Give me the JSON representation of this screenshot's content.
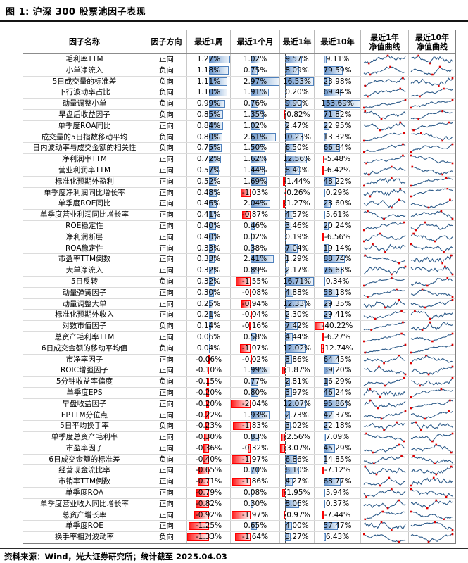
{
  "title": "图 1: 沪深 300 股票池因子表现",
  "footer": "资料来源：Wind，光大证券研究所；统计截至 2025.04.03",
  "colors": {
    "positive_bar_border": "#4f81bd",
    "positive_bar_fill": "#6b96cc",
    "negative_bar_border": "#ff0000",
    "negative_bar_fill": "#ff1f1f",
    "sparkline_line": "#2e5c8a",
    "sparkline_marker": "#dd0000",
    "axis_dash": "#4a4a4a"
  },
  "table": {
    "headers": {
      "name": "因子名称",
      "direction": "因子方向",
      "week": "最近1周",
      "month": "最近1个月",
      "year": "最近1年",
      "tenyear": "最近10年",
      "curve1y": {
        "line1": "最近1年",
        "line2": "净值曲线"
      },
      "curve10y": {
        "line1": "最近10年",
        "line2": "净值曲线"
      }
    },
    "rows": [
      {
        "name": "毛利率TTM",
        "direction": "正向",
        "week": 1.27,
        "month": 1.02,
        "year": 9.57,
        "tenyear": 9.11
      },
      {
        "name": "小单净流入",
        "direction": "负向",
        "week": 1.18,
        "month": 0.75,
        "year": 8.09,
        "tenyear": 79.59
      },
      {
        "name": "5日成交量的标准差",
        "direction": "负向",
        "week": 1.11,
        "month": 2.97,
        "year": 16.53,
        "tenyear": 23.98
      },
      {
        "name": "下行波动率占比",
        "direction": "负向",
        "week": 1.1,
        "month": 1.91,
        "year": 0.2,
        "tenyear": 69.44
      },
      {
        "name": "动量调整小单",
        "direction": "负向",
        "week": 0.99,
        "month": 0.76,
        "year": 9.9,
        "tenyear": 153.69
      },
      {
        "name": "早盘后收益因子",
        "direction": "负向",
        "week": 0.85,
        "month": 1.35,
        "year": -0.82,
        "tenyear": 71.82
      },
      {
        "name": "单季度ROA同比",
        "direction": "正向",
        "week": 0.84,
        "month": 1.02,
        "year": 2.47,
        "tenyear": 22.95
      },
      {
        "name": "成交量的5日指数移动平均",
        "direction": "负向",
        "week": 0.8,
        "month": 2.61,
        "year": 10.23,
        "tenyear": 13.32
      },
      {
        "name": "日内波动率与成交金额的相关性",
        "direction": "负向",
        "week": 0.75,
        "month": 1.5,
        "year": 6.5,
        "tenyear": 66.64
      },
      {
        "name": "净利润率TTM",
        "direction": "正向",
        "week": 0.72,
        "month": 1.62,
        "year": 12.56,
        "tenyear": -5.48
      },
      {
        "name": "营业利润率TTM",
        "direction": "正向",
        "week": 0.57,
        "month": 1.44,
        "year": 8.4,
        "tenyear": -6.42
      },
      {
        "name": "标准化预期外盈利",
        "direction": "正向",
        "week": 0.52,
        "month": 1.69,
        "year": -1.44,
        "tenyear": 48.22
      },
      {
        "name": "单季度净利润同比增长率",
        "direction": "正向",
        "week": 0.48,
        "month": -1.03,
        "year": -0.26,
        "tenyear": 0.29
      },
      {
        "name": "单季度ROE同比",
        "direction": "正向",
        "week": 0.46,
        "month": 2.04,
        "year": -1.27,
        "tenyear": 28.6
      },
      {
        "name": "单季度营业利润同比增长率",
        "direction": "正向",
        "week": 0.41,
        "month": -0.87,
        "year": 4.57,
        "tenyear": 5.61
      },
      {
        "name": "ROE稳定性",
        "direction": "正向",
        "week": 0.4,
        "month": 0.46,
        "year": 3.46,
        "tenyear": 20.24
      },
      {
        "name": "净利润断层",
        "direction": "正向",
        "week": 0.4,
        "month": 0.02,
        "year": 0.19,
        "tenyear": -6.56
      },
      {
        "name": "ROA稳定性",
        "direction": "正向",
        "week": 0.33,
        "month": 0.38,
        "year": 7.04,
        "tenyear": 19.14
      },
      {
        "name": "市盈率TTM倒数",
        "direction": "正向",
        "week": 0.33,
        "month": 2.41,
        "year": 1.29,
        "tenyear": 88.74
      },
      {
        "name": "大单净流入",
        "direction": "正向",
        "week": 0.32,
        "month": 0.89,
        "year": 2.17,
        "tenyear": 76.63
      },
      {
        "name": "5日反转",
        "direction": "负向",
        "week": 0.32,
        "month": -1.55,
        "year": 16.71,
        "tenyear": 0.34
      },
      {
        "name": "动量弹簧因子",
        "direction": "正向",
        "week": 0.3,
        "month": -0.08,
        "year": 4.88,
        "tenyear": 58.18
      },
      {
        "name": "动量调整大单",
        "direction": "正向",
        "week": 0.25,
        "month": -0.94,
        "year": 12.33,
        "tenyear": 29.35
      },
      {
        "name": "标准化预期外收入",
        "direction": "正向",
        "week": 0.21,
        "month": -0.04,
        "year": 2.3,
        "tenyear": 29.41
      },
      {
        "name": "对数市值因子",
        "direction": "负向",
        "week": 0.14,
        "month": -0.16,
        "year": 7.42,
        "tenyear": -40.22
      },
      {
        "name": "总资产毛利率TTM",
        "direction": "正向",
        "week": 0.06,
        "month": 0.58,
        "year": 4.44,
        "tenyear": -6.27
      },
      {
        "name": "6日成交金额的移动平均值",
        "direction": "负向",
        "week": 0.04,
        "month": -1.07,
        "year": 12.02,
        "tenyear": -12.74
      },
      {
        "name": "市净率因子",
        "direction": "正向",
        "week": -0.06,
        "month": -0.02,
        "year": 3.86,
        "tenyear": 64.45
      },
      {
        "name": "ROIC增强因子",
        "direction": "正向",
        "week": -0.1,
        "month": 1.99,
        "year": -1.87,
        "tenyear": 39.2
      },
      {
        "name": "5分钟收益率偏度",
        "direction": "负向",
        "week": -0.15,
        "month": 0.77,
        "year": 2.81,
        "tenyear": 16.29
      },
      {
        "name": "单季度EPS",
        "direction": "正向",
        "week": -0.2,
        "month": 0.8,
        "year": 3.97,
        "tenyear": 46.24
      },
      {
        "name": "早盘收益因子",
        "direction": "正向",
        "week": -0.2,
        "month": -2.04,
        "year": 12.07,
        "tenyear": 95.86
      },
      {
        "name": "EPTTM分位点",
        "direction": "正向",
        "week": -0.22,
        "month": 1.93,
        "year": 2.73,
        "tenyear": 42.37
      },
      {
        "name": "5日平均换手率",
        "direction": "负向",
        "week": -0.23,
        "month": -1.83,
        "year": 3.02,
        "tenyear": 22.18
      },
      {
        "name": "单季度总资产毛利率",
        "direction": "正向",
        "week": -0.3,
        "month": 0.83,
        "year": -2.56,
        "tenyear": 7.09
      },
      {
        "name": "市盈率因子",
        "direction": "正向",
        "week": -0.36,
        "month": -0.32,
        "year": -3.07,
        "tenyear": 45.29
      },
      {
        "name": "6日成交金额的标准差",
        "direction": "负向",
        "week": -0.4,
        "month": -1.97,
        "year": 6.86,
        "tenyear": 14.85
      },
      {
        "name": "经营现金流比率",
        "direction": "正向",
        "week": -0.65,
        "month": 0.7,
        "year": 8.1,
        "tenyear": -7.12
      },
      {
        "name": "市销率TTM倒数",
        "direction": "正向",
        "week": -0.71,
        "month": -1.86,
        "year": 4.27,
        "tenyear": 68.77
      },
      {
        "name": "单季度ROA",
        "direction": "正向",
        "week": -0.79,
        "month": 0.08,
        "year": -1.95,
        "tenyear": 5.94
      },
      {
        "name": "单季度营业收入同比增长率",
        "direction": "正向",
        "week": -0.82,
        "month": 0.3,
        "year": 8.06,
        "tenyear": 0.37
      },
      {
        "name": "总资产增长率",
        "direction": "正向",
        "week": -0.92,
        "month": -1.97,
        "year": -0.97,
        "tenyear": -7.44
      },
      {
        "name": "单季度ROE",
        "direction": "正向",
        "week": -1.25,
        "month": 0.65,
        "year": 4.0,
        "tenyear": 57.47
      },
      {
        "name": "换手率相对波动率",
        "direction": "负向",
        "week": -1.33,
        "month": -1.64,
        "year": 3.27,
        "tenyear": 6.43
      }
    ]
  }
}
